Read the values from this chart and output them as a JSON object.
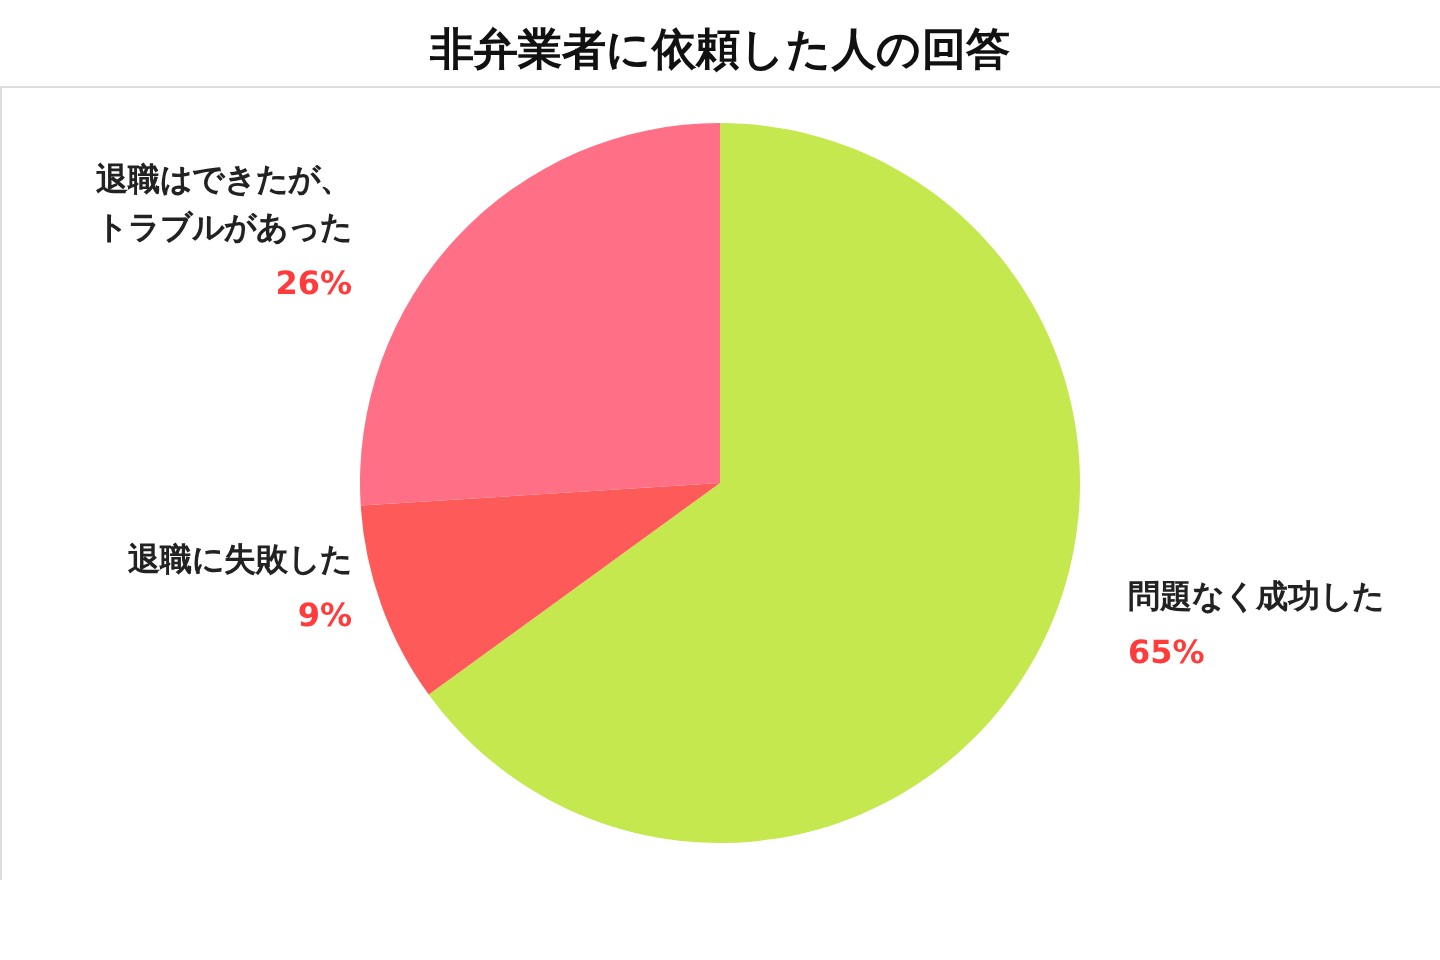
{
  "chart_data": {
    "type": "pie",
    "title": "非弁業者に依頼した人の回答",
    "categories": [
      "問題なく成功した",
      "退職に失敗した",
      "退職はできたが、トラブルがあった"
    ],
    "values": [
      65,
      9,
      26
    ],
    "colors": [
      "#c5e84f",
      "#ff5a5a",
      "#ff6f85"
    ],
    "value_labels": [
      "65%",
      "9%",
      "26%"
    ],
    "legend": false
  }
}
